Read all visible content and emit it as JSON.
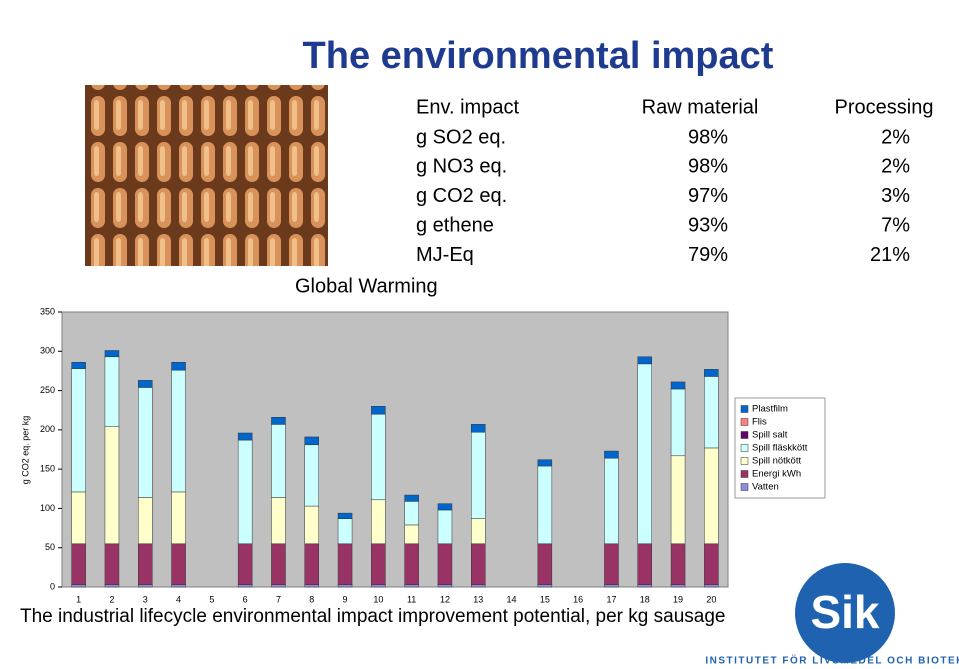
{
  "title": "The environmental impact",
  "table": {
    "header": [
      "Env. impact",
      "Raw material",
      "Processing"
    ],
    "rows": [
      [
        "g SO2 eq.",
        "98%",
        "2%"
      ],
      [
        "g NO3 eq.",
        "98%",
        "2%"
      ],
      [
        "g CO2 eq.",
        "97%",
        "3%"
      ],
      [
        "g ethene",
        "93%",
        "7%"
      ],
      [
        "MJ-Eq",
        "79%",
        "21%"
      ]
    ]
  },
  "chart_data": {
    "type": "stacked-bar",
    "title": "Global Warming",
    "y_label": "g CO2 eq. per kg",
    "categories": [
      "1",
      "2",
      "3",
      "4",
      "5",
      "6",
      "7",
      "8",
      "9",
      "10",
      "11",
      "12",
      "13",
      "14",
      "15",
      "16",
      "17",
      "18",
      "19",
      "20"
    ],
    "series": [
      {
        "name": "Vatten",
        "color": "#8c8ce0",
        "values": [
          3,
          3,
          3,
          3,
          0,
          3,
          3,
          3,
          3,
          3,
          3,
          3,
          3,
          0,
          3,
          0,
          3,
          3,
          3,
          3
        ]
      },
      {
        "name": "Energi kWh",
        "color": "#993366",
        "values": [
          52,
          52,
          52,
          52,
          0,
          52,
          52,
          52,
          52,
          52,
          52,
          52,
          52,
          0,
          52,
          0,
          52,
          52,
          52,
          52
        ]
      },
      {
        "name": "Spill nötkött",
        "color": "#ffffcc",
        "values": [
          66,
          149,
          59,
          66,
          0,
          0,
          59,
          48,
          0,
          56,
          24,
          0,
          32,
          0,
          0,
          0,
          0,
          0,
          112,
          122
        ]
      },
      {
        "name": "Spill fläskkött",
        "color": "#ccffff",
        "values": [
          157,
          89,
          140,
          155,
          0,
          132,
          93,
          78,
          32,
          109,
          30,
          43,
          110,
          0,
          99,
          0,
          109,
          229,
          85,
          91
        ]
      },
      {
        "name": "Spill salt",
        "color": "#660066",
        "values": [
          0,
          0,
          0,
          0,
          0,
          0,
          0,
          0,
          0,
          0,
          0,
          0,
          0,
          0,
          0,
          0,
          0,
          0,
          0,
          0
        ]
      },
      {
        "name": "Flis",
        "color": "#ff8080",
        "values": [
          0,
          0,
          0,
          0,
          0,
          0,
          0,
          0,
          0,
          0,
          0,
          0,
          0,
          0,
          0,
          0,
          0,
          0,
          0,
          0
        ]
      },
      {
        "name": "Plastfilm",
        "color": "#0066cc",
        "values": [
          8,
          8,
          9,
          10,
          0,
          9,
          9,
          10,
          7,
          10,
          8,
          8,
          10,
          0,
          8,
          0,
          9,
          9,
          9,
          9
        ]
      }
    ],
    "ylim": [
      0,
      350
    ],
    "yticks": [
      0,
      50,
      100,
      150,
      200,
      250,
      300,
      350
    ],
    "grid": false,
    "legend": "right"
  },
  "footer": "The industrial lifecycle environmental impact improvement potential, per kg sausage",
  "logo": {
    "text": "Sik",
    "tagline": "INSTITUTET FÖR LIVSMEDEL OCH BIOTEKNIK"
  }
}
